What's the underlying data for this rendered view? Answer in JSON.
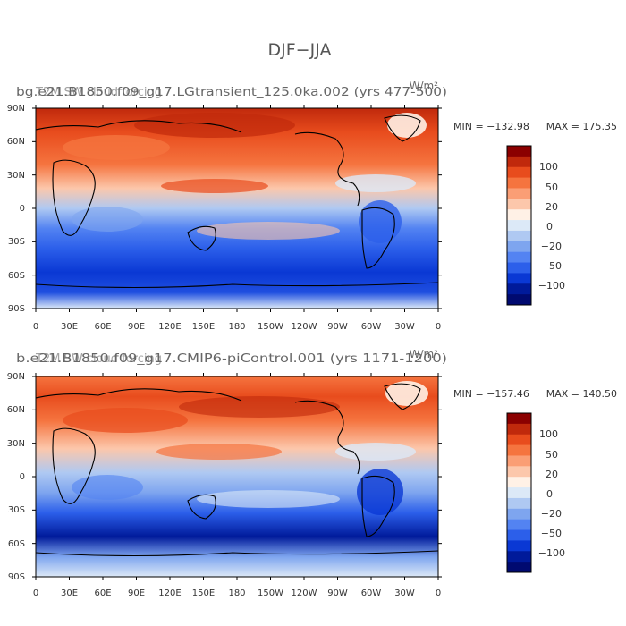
{
  "page_title": "DJF−JJA",
  "chart_data": [
    {
      "type": "heatmap",
      "title": "bg.e21.B1850.f09_g17.LGtransient_125.0ka.002 (yrs 477-500)",
      "variable_title": "T2M SW cloud forcing",
      "units": "W/m²",
      "min_label": "MIN = −132.98",
      "max_label": "MAX = 175.35",
      "min": -132.98,
      "max": 175.35,
      "x_ticks": [
        "0",
        "30E",
        "60E",
        "90E",
        "120E",
        "150E",
        "180",
        "150W",
        "120W",
        "90W",
        "60W",
        "30W",
        "0"
      ],
      "y_ticks": [
        "90N",
        "60N",
        "30N",
        "0",
        "30S",
        "60S",
        "90S"
      ],
      "colorbar": {
        "labels": [
          "100",
          "50",
          "20",
          "0",
          "−20",
          "−50",
          "−100"
        ],
        "colors": [
          "#8b0000",
          "#c0290c",
          "#e84c1d",
          "#f5743f",
          "#fa9e75",
          "#fcc7ab",
          "#fff1e6",
          "#dce9f7",
          "#afc9f2",
          "#7ea5ef",
          "#5383f2",
          "#2c5fea",
          "#0a38d4",
          "#001a9a",
          "#000a70"
        ]
      }
    },
    {
      "type": "heatmap",
      "title": "b.e21.B1850.f09_g17.CMIP6-piControl.001 (yrs 1171-1200)",
      "variable_title": "T2M SW cloud forcing",
      "units": "W/m²",
      "min_label": "MIN = −157.46",
      "max_label": "MAX = 140.50",
      "min": -157.46,
      "max": 140.5,
      "x_ticks": [
        "0",
        "30E",
        "60E",
        "90E",
        "120E",
        "150E",
        "180",
        "150W",
        "120W",
        "90W",
        "60W",
        "30W",
        "0"
      ],
      "y_ticks": [
        "90N",
        "60N",
        "30N",
        "0",
        "30S",
        "60S",
        "90S"
      ],
      "colorbar": {
        "labels": [
          "100",
          "50",
          "20",
          "0",
          "−20",
          "−50",
          "−100"
        ],
        "colors": [
          "#8b0000",
          "#c0290c",
          "#e84c1d",
          "#f5743f",
          "#fa9e75",
          "#fcc7ab",
          "#fff1e6",
          "#dce9f7",
          "#afc9f2",
          "#7ea5ef",
          "#5383f2",
          "#2c5fea",
          "#0a38d4",
          "#001a9a",
          "#000a70"
        ]
      }
    }
  ]
}
